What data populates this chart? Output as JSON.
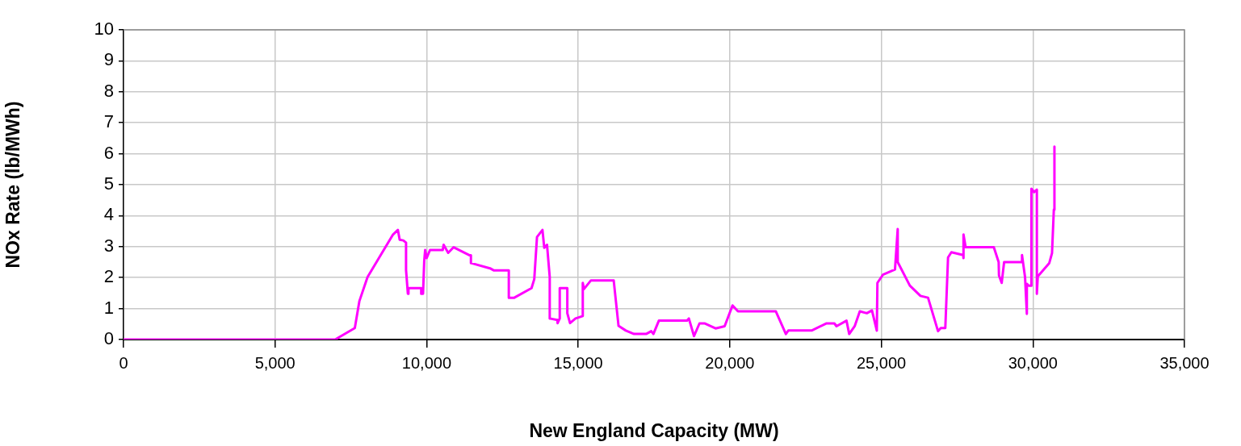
{
  "chart_data": {
    "type": "line",
    "xlabel": "New England Capacity (MW)",
    "ylabel": "NOx Rate (lb/MWh)",
    "xlim": [
      0,
      35000
    ],
    "xticks": [
      0,
      {
        "value": 5000,
        "label": "5,000"
      },
      {
        "value": 10000,
        "label": "10,000"
      },
      {
        "value": 15000,
        "label": "15,000"
      },
      {
        "value": 20000,
        "label": "20,000"
      },
      {
        "value": 25000,
        "label": "25,000"
      },
      {
        "value": 30000,
        "label": "30,000"
      },
      {
        "value": 35000,
        "label": "35,000"
      }
    ],
    "ylim": [
      0,
      10
    ],
    "yticks": [
      0,
      1,
      2,
      3,
      4,
      5,
      6,
      7,
      8,
      9,
      10
    ],
    "grid": true,
    "marker": "none",
    "line_style": "solid",
    "series": [
      {
        "color": "#ff00ff",
        "x": [
          0,
          6980,
          7630,
          7780,
          8050,
          8890,
          9050,
          9110,
          9230,
          9320,
          9320,
          9380,
          9400,
          9820,
          9820,
          9880,
          9920,
          9950,
          10000,
          10110,
          10530,
          10560,
          10710,
          10890,
          11420,
          11460,
          11460,
          12090,
          12220,
          12710,
          12710,
          12890,
          13460,
          13550,
          13640,
          13820,
          13880,
          13970,
          14060,
          14060,
          14310,
          14320,
          14390,
          14390,
          14640,
          14640,
          14730,
          14910,
          15150,
          15150,
          15190,
          15420,
          16170,
          16330,
          16570,
          16840,
          17240,
          17410,
          17480,
          17660,
          18590,
          18650,
          18820,
          19000,
          19180,
          19530,
          19830,
          20090,
          20270,
          21520,
          21850,
          21930,
          22700,
          23180,
          23450,
          23520,
          23850,
          23940,
          24120,
          24290,
          24520,
          24690,
          24850,
          24870,
          25050,
          25450,
          25540,
          25540,
          25940,
          26290,
          26540,
          26870,
          26960,
          27110,
          27200,
          27310,
          27700,
          27710,
          27710,
          27780,
          28710,
          28870,
          28880,
          28970,
          29050,
          29620,
          29640,
          29740,
          29800,
          29800,
          29860,
          29950,
          29950,
          30040,
          30130,
          30130,
          30160,
          30540,
          30630,
          30690,
          30710
        ],
        "values": [
          0,
          0,
          0.37,
          1.24,
          2.02,
          3.39,
          3.54,
          3.22,
          3.2,
          3.13,
          2.24,
          1.48,
          1.66,
          1.66,
          1.48,
          1.48,
          2.54,
          2.89,
          2.63,
          2.89,
          2.89,
          3.06,
          2.8,
          2.98,
          2.72,
          2.72,
          2.47,
          2.3,
          2.23,
          2.23,
          1.35,
          1.35,
          1.66,
          1.95,
          3.31,
          3.54,
          2.96,
          3.06,
          2.02,
          0.68,
          0.63,
          0.53,
          0.68,
          1.66,
          1.66,
          0.85,
          0.53,
          0.68,
          0.76,
          1.83,
          1.63,
          1.91,
          1.91,
          0.44,
          0.29,
          0.18,
          0.18,
          0.27,
          0.18,
          0.61,
          0.61,
          0.68,
          0.11,
          0.52,
          0.52,
          0.36,
          0.43,
          1.1,
          0.91,
          0.91,
          0.18,
          0.29,
          0.29,
          0.52,
          0.52,
          0.43,
          0.61,
          0.18,
          0.43,
          0.91,
          0.85,
          0.94,
          0.29,
          1.83,
          2.09,
          2.26,
          3.57,
          2.5,
          1.74,
          1.41,
          1.35,
          0.27,
          0.37,
          0.37,
          2.65,
          2.82,
          2.73,
          2.63,
          3.39,
          2.98,
          2.98,
          2.5,
          2.07,
          1.83,
          2.5,
          2.5,
          2.73,
          2.02,
          0.83,
          1.8,
          1.74,
          1.74,
          4.87,
          4.76,
          4.84,
          1.48,
          2.04,
          2.47,
          2.79,
          4.19,
          6.23
        ]
      }
    ]
  }
}
